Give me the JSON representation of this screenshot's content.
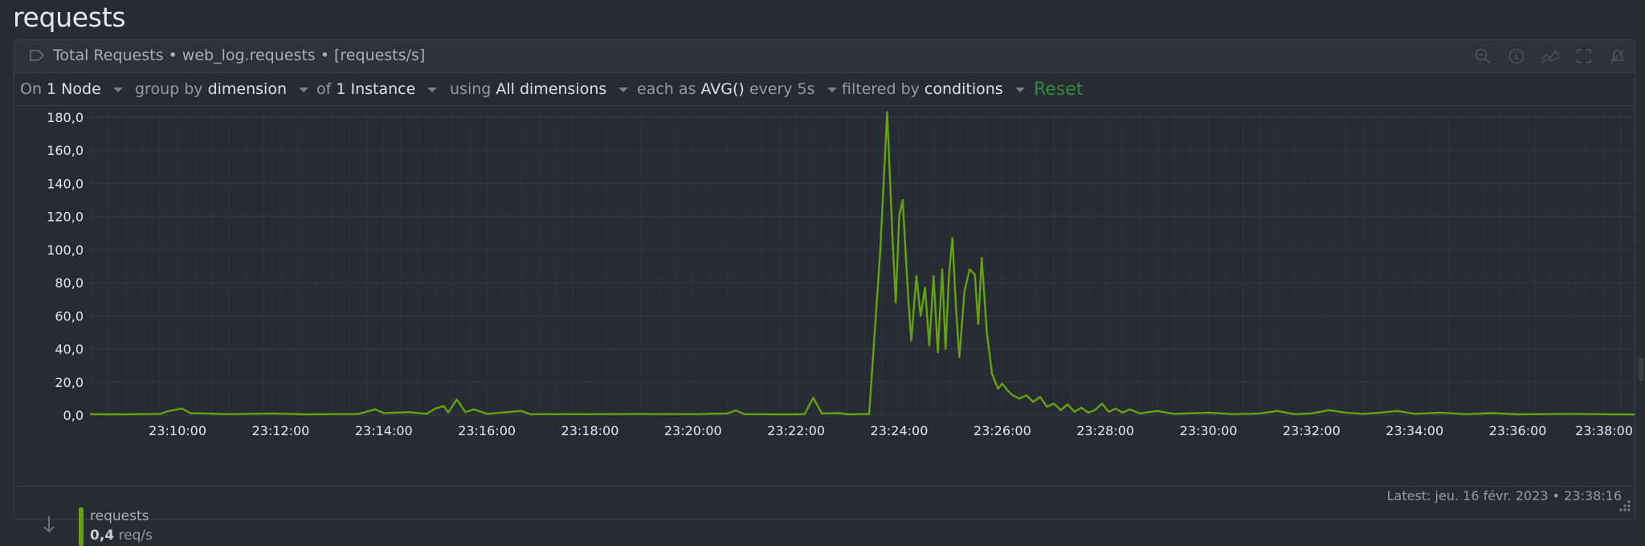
{
  "page": {
    "title": "requests"
  },
  "card": {
    "header_title": "Total Requests • web_log.requests • [requests/s]",
    "tool_icons": [
      "zoom-reset-icon",
      "info-icon",
      "chart-type-icon",
      "fullscreen-icon",
      "alert-icon"
    ]
  },
  "toolbar": {
    "on_label": "On",
    "on_value": "1 Node",
    "group_label": "group by",
    "group_value": "dimension",
    "of_label": "of",
    "of_value": "1 Instance",
    "using_label": "using",
    "using_value": "All dimensions",
    "each_label": "each as",
    "each_value": "AVG()",
    "every_value": "every 5s",
    "filter_label": "filtered by",
    "filter_value": "conditions",
    "reset_label": "Reset"
  },
  "legend": {
    "latest": "Latest:  jeu. 16 févr. 2023 • 23:38:16",
    "name": "requests",
    "value": "0,4",
    "unit": "req/s",
    "color": "#65a30d"
  },
  "chart_data": {
    "type": "line",
    "ylim": [
      0,
      180
    ],
    "yticks": [
      0,
      20,
      40,
      60,
      80,
      100,
      120,
      140,
      160,
      180
    ],
    "ytick_labels": [
      "0,0",
      "20,0",
      "40,0",
      "60,0",
      "80,0",
      "100,0",
      "120,0",
      "140,0",
      "160,0",
      "180,0"
    ],
    "xlim": [
      "23:08:18",
      "23:38:16"
    ],
    "xtick_labels": [
      "23:10:00",
      "23:12:00",
      "23:14:00",
      "23:16:00",
      "23:18:00",
      "23:20:00",
      "23:22:00",
      "23:24:00",
      "23:26:00",
      "23:28:00",
      "23:30:00",
      "23:32:00",
      "23:34:00",
      "23:36:00",
      "23:38:00"
    ],
    "grid": true,
    "series": [
      {
        "name": "requests",
        "color": "#65a30d",
        "points": [
          [
            "23:08:18",
            0.6
          ],
          [
            "23:09:00",
            0.5
          ],
          [
            "23:09:40",
            0.8
          ],
          [
            "23:09:50",
            2.5
          ],
          [
            "23:10:05",
            4.0
          ],
          [
            "23:10:15",
            1.2
          ],
          [
            "23:11:00",
            0.6
          ],
          [
            "23:11:50",
            1.0
          ],
          [
            "23:12:30",
            0.5
          ],
          [
            "23:13:30",
            0.7
          ],
          [
            "23:13:50",
            3.5
          ],
          [
            "23:14:00",
            1.2
          ],
          [
            "23:14:30",
            1.8
          ],
          [
            "23:14:50",
            0.8
          ],
          [
            "23:15:00",
            4.0
          ],
          [
            "23:15:10",
            5.5
          ],
          [
            "23:15:15",
            1.5
          ],
          [
            "23:15:25",
            9.5
          ],
          [
            "23:15:35",
            1.8
          ],
          [
            "23:15:45",
            3.5
          ],
          [
            "23:16:00",
            0.8
          ],
          [
            "23:16:40",
            2.5
          ],
          [
            "23:16:50",
            0.6
          ],
          [
            "23:18:00",
            0.6
          ],
          [
            "23:19:00",
            0.7
          ],
          [
            "23:20:00",
            0.6
          ],
          [
            "23:20:40",
            1.0
          ],
          [
            "23:20:50",
            2.8
          ],
          [
            "23:21:00",
            0.6
          ],
          [
            "23:22:00",
            0.5
          ],
          [
            "23:22:10",
            0.7
          ],
          [
            "23:22:20",
            10.5
          ],
          [
            "23:22:30",
            1.0
          ],
          [
            "23:22:50",
            1.2
          ],
          [
            "23:23:00",
            0.5
          ],
          [
            "23:23:25",
            0.7
          ],
          [
            "23:23:38",
            100.0
          ],
          [
            "23:23:46",
            183.0
          ],
          [
            "23:23:52",
            110.0
          ],
          [
            "23:23:56",
            68.0
          ],
          [
            "23:24:00",
            120.0
          ],
          [
            "23:24:04",
            130.0
          ],
          [
            "23:24:10",
            75.0
          ],
          [
            "23:24:14",
            45.0
          ],
          [
            "23:24:20",
            84.0
          ],
          [
            "23:24:25",
            60.0
          ],
          [
            "23:24:30",
            77.0
          ],
          [
            "23:24:35",
            42.0
          ],
          [
            "23:24:40",
            84.0
          ],
          [
            "23:24:45",
            38.0
          ],
          [
            "23:24:50",
            88.0
          ],
          [
            "23:24:54",
            40.0
          ],
          [
            "23:24:58",
            85.0
          ],
          [
            "23:25:02",
            107.0
          ],
          [
            "23:25:06",
            65.0
          ],
          [
            "23:25:10",
            35.0
          ],
          [
            "23:25:16",
            75.0
          ],
          [
            "23:25:22",
            88.0
          ],
          [
            "23:25:28",
            85.0
          ],
          [
            "23:25:32",
            55.0
          ],
          [
            "23:25:36",
            95.0
          ],
          [
            "23:25:42",
            50.0
          ],
          [
            "23:25:48",
            25.0
          ],
          [
            "23:25:55",
            16.0
          ],
          [
            "23:26:00",
            19.0
          ],
          [
            "23:26:06",
            15.0
          ],
          [
            "23:26:12",
            12.0
          ],
          [
            "23:26:20",
            10.0
          ],
          [
            "23:26:28",
            12.0
          ],
          [
            "23:26:36",
            8.0
          ],
          [
            "23:26:44",
            11.0
          ],
          [
            "23:26:52",
            5.0
          ],
          [
            "23:27:00",
            7.0
          ],
          [
            "23:27:08",
            3.0
          ],
          [
            "23:27:16",
            6.5
          ],
          [
            "23:27:24",
            2.0
          ],
          [
            "23:27:32",
            4.5
          ],
          [
            "23:27:40",
            1.5
          ],
          [
            "23:27:48",
            3.0
          ],
          [
            "23:27:56",
            7.0
          ],
          [
            "23:28:04",
            2.0
          ],
          [
            "23:28:12",
            4.0
          ],
          [
            "23:28:20",
            1.5
          ],
          [
            "23:28:28",
            3.5
          ],
          [
            "23:28:40",
            1.0
          ],
          [
            "23:29:00",
            2.5
          ],
          [
            "23:29:20",
            0.8
          ],
          [
            "23:30:00",
            1.5
          ],
          [
            "23:30:30",
            0.6
          ],
          [
            "23:31:00",
            1.0
          ],
          [
            "23:31:20",
            2.5
          ],
          [
            "23:31:40",
            0.6
          ],
          [
            "23:32:00",
            1.0
          ],
          [
            "23:32:20",
            3.0
          ],
          [
            "23:32:40",
            1.5
          ],
          [
            "23:33:00",
            0.8
          ],
          [
            "23:33:20",
            1.5
          ],
          [
            "23:33:40",
            2.5
          ],
          [
            "23:34:00",
            0.8
          ],
          [
            "23:34:30",
            1.5
          ],
          [
            "23:35:00",
            0.6
          ],
          [
            "23:35:30",
            1.2
          ],
          [
            "23:36:00",
            0.5
          ],
          [
            "23:37:00",
            0.8
          ],
          [
            "23:38:16",
            0.4
          ]
        ]
      }
    ]
  }
}
